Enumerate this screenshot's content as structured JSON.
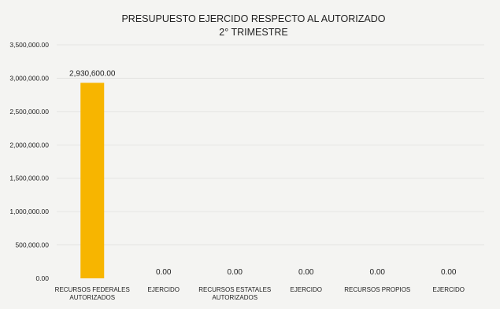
{
  "chart_data": {
    "type": "bar",
    "title": "PRESUPUESTO EJERCIDO RESPECTO AL AUTORIZADO",
    "subtitle": "2° TRIMESTRE",
    "categories": [
      [
        "RECURSOS FEDERALES",
        "AUTORIZADOS"
      ],
      [
        "EJERCIDO"
      ],
      [
        "RECURSOS ESTATALES",
        "AUTORIZADOS"
      ],
      [
        "EJERCIDO"
      ],
      [
        "RECURSOS PROPIOS"
      ],
      [
        "EJERCIDO"
      ]
    ],
    "values": [
      2930600,
      0,
      0,
      0,
      0,
      0
    ],
    "data_labels": [
      "2,930,600.00",
      "0.00",
      "0.00",
      "0.00",
      "0.00",
      "0.00"
    ],
    "ylim": [
      0,
      3500000
    ],
    "yticks": [
      0,
      500000,
      1000000,
      1500000,
      2000000,
      2500000,
      3000000,
      3500000
    ],
    "ytick_labels": [
      "0.00",
      "500,000.00",
      "1,000,000.00",
      "1,500,000.00",
      "2,000,000.00",
      "2,500,000.00",
      "3,000,000.00",
      "3,500,000.00"
    ],
    "bar_color": "#f7b500",
    "grid": true,
    "legend": false
  }
}
